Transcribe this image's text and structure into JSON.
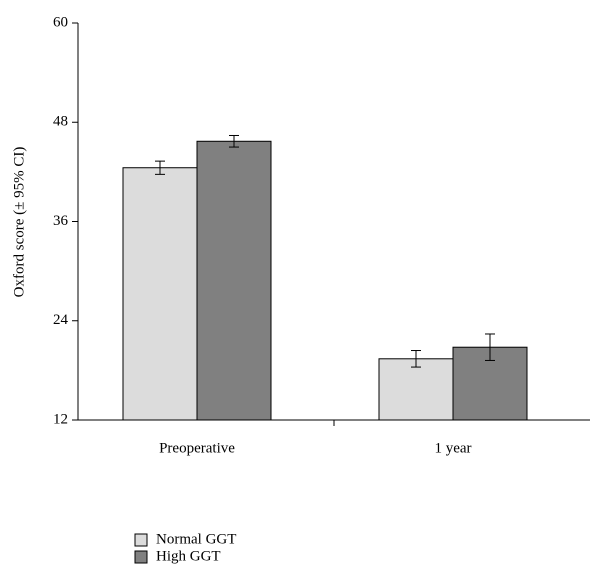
{
  "chart_data": {
    "type": "bar",
    "y_label": "Oxford score (± 95% CI)",
    "categories": [
      "Preoperative",
      "1 year"
    ],
    "series": [
      {
        "name": "Normal GGT",
        "color": "#dcdcdc",
        "values": [
          42.5,
          19.4
        ],
        "errors": [
          0.8,
          1.0
        ]
      },
      {
        "name": "High GGT",
        "color": "#808080",
        "values": [
          45.7,
          20.8
        ],
        "errors": [
          0.7,
          1.6
        ]
      }
    ],
    "ylim": [
      12,
      60
    ],
    "yticks": [
      12,
      24,
      36,
      48,
      60
    ]
  }
}
